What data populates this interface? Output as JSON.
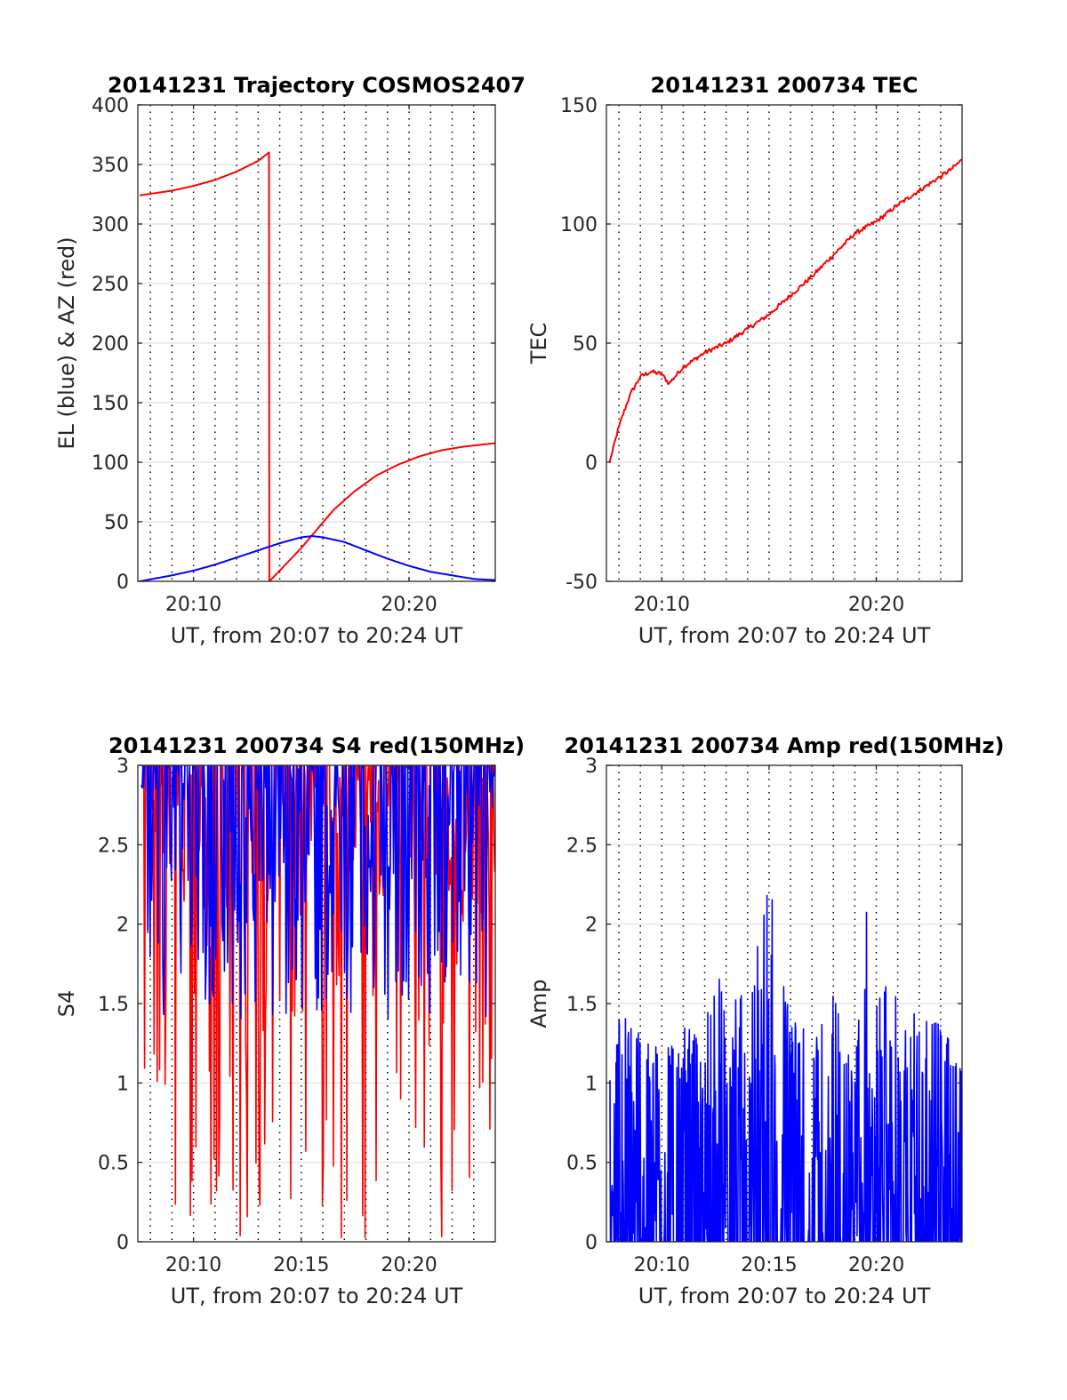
{
  "chart_data": [
    {
      "type": "line",
      "title": "20141231 Trajectory COSMOS2407",
      "xlabel": "UT, from 20:07 to 20:24 UT",
      "ylabel": "EL (blue) & AZ (red)",
      "xlim": [
        "20:07:25",
        "20:24:00"
      ],
      "ylim": [
        0,
        400
      ],
      "yticks": [
        0,
        50,
        100,
        150,
        200,
        250,
        300,
        350,
        400
      ],
      "xticks": [
        "20:10",
        "20:20"
      ],
      "grid": true,
      "series": [
        {
          "color": "#ff0000",
          "x": [
            "20:07:30",
            "20:09:00",
            "20:10:00",
            "20:11:00",
            "20:12:00",
            "20:13:00",
            "20:13:30",
            "20:13:31",
            "20:14:00",
            "20:15:00",
            "20:15:45",
            "20:16:30",
            "20:17:30",
            "20:18:30",
            "20:19:30",
            "20:20:30",
            "20:21:30",
            "20:22:30",
            "20:23:30",
            "20:24:00"
          ],
          "values": [
            324,
            328,
            332,
            337,
            344,
            353,
            360,
            0,
            9,
            28,
            44,
            60,
            76,
            89,
            98,
            105,
            110,
            113,
            115,
            116
          ]
        },
        {
          "color": "#0000ff",
          "x": [
            "20:07:30",
            "20:09:00",
            "20:10:00",
            "20:11:00",
            "20:12:00",
            "20:13:00",
            "20:14:00",
            "20:15:00",
            "20:15:30",
            "20:16:00",
            "20:17:00",
            "20:18:00",
            "20:19:00",
            "20:20:00",
            "20:21:00",
            "20:22:00",
            "20:23:00",
            "20:24:00"
          ],
          "values": [
            0,
            5,
            9,
            14,
            20,
            26,
            32,
            37,
            38,
            37,
            33,
            26,
            19,
            13,
            8,
            5,
            2,
            1
          ]
        }
      ]
    },
    {
      "type": "line",
      "title": "20141231 200734 TEC",
      "xlabel": "UT, from 20:07 to 20:24 UT",
      "ylabel": "TEC",
      "xlim": [
        "20:07:25",
        "20:24:00"
      ],
      "ylim": [
        -50,
        150
      ],
      "yticks": [
        -50,
        0,
        50,
        100,
        150
      ],
      "xticks": [
        "20:10",
        "20:20"
      ],
      "grid": true,
      "series": [
        {
          "color": "#ff0000",
          "x": [
            "20:07:34",
            "20:08:00",
            "20:08:30",
            "20:09:00",
            "20:09:30",
            "20:10:00",
            "20:10:20",
            "20:11:00",
            "20:12:00",
            "20:13:00",
            "20:14:00",
            "20:15:00",
            "20:16:00",
            "20:17:00",
            "20:18:00",
            "20:19:00",
            "20:20:00",
            "20:21:00",
            "20:22:00",
            "20:23:00",
            "20:23:30",
            "20:24:00"
          ],
          "values": [
            0,
            15,
            28,
            36,
            38,
            37,
            33,
            40,
            46,
            50,
            56,
            62,
            70,
            78,
            87,
            96,
            101,
            108,
            114,
            120,
            123,
            127
          ]
        }
      ]
    },
    {
      "type": "line",
      "title": "20141231 200734 S4 red(150MHz)",
      "xlabel": "UT, from 20:07 to 20:24 UT",
      "ylabel": "S4",
      "xlim": [
        "20:07:25",
        "20:24:00"
      ],
      "ylim": [
        0,
        3
      ],
      "yticks": [
        0,
        0.5,
        1,
        1.5,
        2,
        2.5,
        3
      ],
      "xticks": [
        "20:10",
        "20:15",
        "20:20"
      ],
      "grid": true,
      "series": [
        {
          "color": "#ff0000",
          "band": [
            0,
            3
          ],
          "x": [
            "20:07:35",
            "20:08:00",
            "20:09:00",
            "20:10:00",
            "20:11:00",
            "20:12:00",
            "20:13:00",
            "20:14:00",
            "20:15:00",
            "20:16:00",
            "20:17:00",
            "20:18:00",
            "20:19:00",
            "20:20:00",
            "20:21:00",
            "20:22:00",
            "20:23:00",
            "20:24:00"
          ],
          "values": [
            2.0,
            2.6,
            2.3,
            2.0,
            1.9,
            2.1,
            2.2,
            2.1,
            2.3,
            2.0,
            2.4,
            2.1,
            2.2,
            2.3,
            2.0,
            2.2,
            2.1,
            2.0
          ]
        },
        {
          "color": "#0000ff",
          "band": [
            1.4,
            3
          ],
          "x": [
            "20:07:35",
            "20:08:00",
            "20:09:00",
            "20:10:00",
            "20:11:00",
            "20:12:00",
            "20:13:00",
            "20:14:00",
            "20:15:00",
            "20:16:00",
            "20:17:00",
            "20:18:00",
            "20:19:00",
            "20:20:00",
            "20:21:00",
            "20:22:00",
            "20:23:00",
            "20:24:00"
          ],
          "values": [
            2.3,
            2.6,
            2.2,
            1.9,
            1.8,
            2.0,
            2.1,
            2.3,
            2.0,
            2.2,
            2.1,
            1.9,
            2.0,
            2.2,
            2.0,
            1.9,
            2.1,
            2.0
          ]
        }
      ]
    },
    {
      "type": "line",
      "title": "20141231 200734 Amp red(150MHz)",
      "xlabel": "UT, from 20:07 to 20:24 UT",
      "ylabel": "Amp",
      "xlim": [
        "20:07:25",
        "20:24:00"
      ],
      "ylim": [
        0,
        3
      ],
      "yticks": [
        0,
        0.5,
        1,
        1.5,
        2,
        2.5,
        3
      ],
      "xticks": [
        "20:10",
        "20:15",
        "20:20"
      ],
      "grid": true,
      "series": [
        {
          "color": "#0000ff",
          "band": [
            0,
            1.1
          ],
          "x": [
            "20:07:35",
            "20:08:00",
            "20:09:00",
            "20:10:00",
            "20:11:00",
            "20:12:00",
            "20:12:30",
            "20:13:00",
            "20:14:00",
            "20:15:00",
            "20:16:00",
            "20:17:00",
            "20:18:00",
            "20:19:00",
            "20:19:35",
            "20:20:00",
            "20:21:00",
            "20:22:00",
            "20:23:00",
            "20:24:00"
          ],
          "values": [
            1.0,
            1.45,
            1.3,
            1.2,
            1.35,
            1.3,
            1.8,
            1.4,
            1.7,
            2.28,
            1.4,
            1.3,
            1.55,
            1.45,
            2.12,
            1.65,
            1.55,
            1.4,
            1.45,
            1.05
          ]
        }
      ]
    }
  ]
}
